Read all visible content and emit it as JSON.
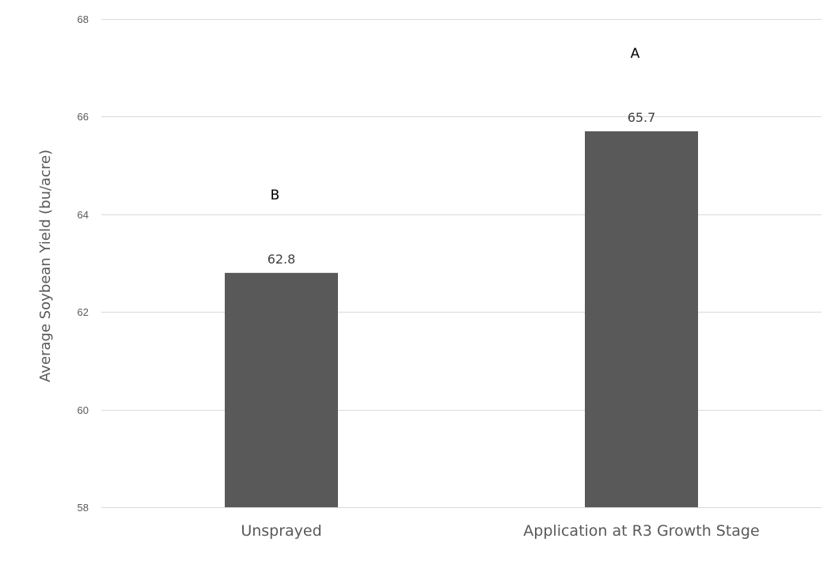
{
  "chart_data": {
    "type": "bar",
    "categories": [
      "Unsprayed",
      "Application at R3 Growth Stage"
    ],
    "values": [
      62.8,
      65.7
    ],
    "data_labels": [
      "62.8",
      "65.7"
    ],
    "significance_letters": [
      "B",
      "A"
    ],
    "title": "",
    "xlabel": "",
    "ylabel": "Average Soybean Yield (bu/acre)",
    "ylim": [
      58,
      68
    ],
    "yticks": [
      58,
      60,
      62,
      64,
      66,
      68
    ],
    "grid": true,
    "legend": "none",
    "bar_color": "#595959",
    "grid_color": "#d9d9d9"
  }
}
